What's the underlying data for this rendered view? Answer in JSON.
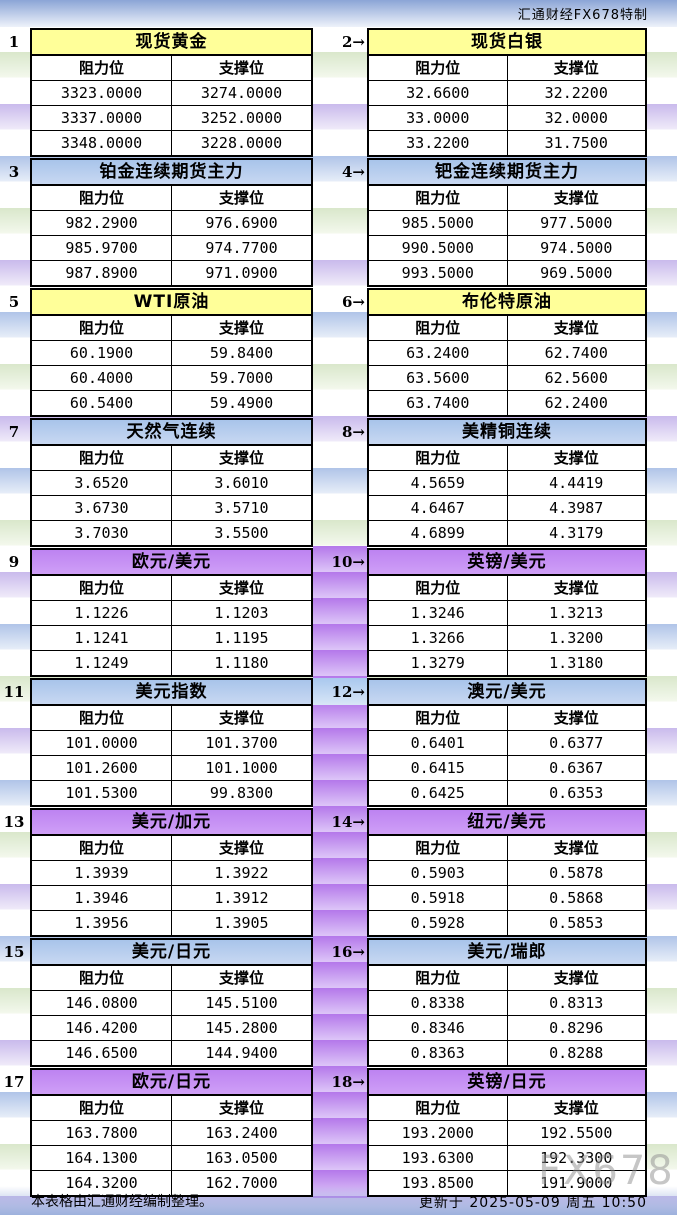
{
  "page": {
    "brand": "汇通财经FX678特制",
    "watermark": "FX678",
    "footer_note": "本表格由汇通财经编制整理。",
    "updated": "更新于 2025-05-09 周五 10:50"
  },
  "columns": {
    "resistance": "阻力位",
    "support": "支撑位"
  },
  "colors": {
    "yellow_header": "#FFFF99",
    "blue_header": "#AFC9EE",
    "purple_header": "#C48EF5",
    "strip_purple": "#B478EA",
    "strip_blue": "#A9C8EE"
  },
  "chart_data": [
    {
      "type": "table",
      "num": "1",
      "title": "现货黄金",
      "theme": "yellow",
      "columns": [
        "阻力位",
        "支撑位"
      ],
      "rows": [
        [
          "3323.0000",
          "3274.0000"
        ],
        [
          "3337.0000",
          "3252.0000"
        ],
        [
          "3348.0000",
          "3228.0000"
        ]
      ]
    },
    {
      "type": "table",
      "num": "2→",
      "title": "现货白银",
      "theme": "yellow",
      "columns": [
        "阻力位",
        "支撑位"
      ],
      "rows": [
        [
          "32.6600",
          "32.2200"
        ],
        [
          "33.0000",
          "32.0000"
        ],
        [
          "33.2200",
          "31.7500"
        ]
      ]
    },
    {
      "type": "table",
      "num": "3",
      "title": "铂金连续期货主力",
      "theme": "blue",
      "columns": [
        "阻力位",
        "支撑位"
      ],
      "rows": [
        [
          "982.2900",
          "976.6900"
        ],
        [
          "985.9700",
          "974.7700"
        ],
        [
          "987.8900",
          "971.0900"
        ]
      ]
    },
    {
      "type": "table",
      "num": "4→",
      "title": "钯金连续期货主力",
      "theme": "blue",
      "columns": [
        "阻力位",
        "支撑位"
      ],
      "rows": [
        [
          "985.5000",
          "977.5000"
        ],
        [
          "990.5000",
          "974.5000"
        ],
        [
          "993.5000",
          "969.5000"
        ]
      ]
    },
    {
      "type": "table",
      "num": "5",
      "title": "WTI原油",
      "theme": "yellow",
      "columns": [
        "阻力位",
        "支撑位"
      ],
      "rows": [
        [
          "60.1900",
          "59.8400"
        ],
        [
          "60.4000",
          "59.7000"
        ],
        [
          "60.5400",
          "59.4900"
        ]
      ]
    },
    {
      "type": "table",
      "num": "6→",
      "title": "布伦特原油",
      "theme": "yellow",
      "columns": [
        "阻力位",
        "支撑位"
      ],
      "rows": [
        [
          "63.2400",
          "62.7400"
        ],
        [
          "63.5600",
          "62.5600"
        ],
        [
          "63.7400",
          "62.2400"
        ]
      ]
    },
    {
      "type": "table",
      "num": "7",
      "title": "天然气连续",
      "theme": "blue",
      "columns": [
        "阻力位",
        "支撑位"
      ],
      "rows": [
        [
          "3.6520",
          "3.6010"
        ],
        [
          "3.6730",
          "3.5710"
        ],
        [
          "3.7030",
          "3.5500"
        ]
      ]
    },
    {
      "type": "table",
      "num": "8→",
      "title": "美精铜连续",
      "theme": "blue",
      "columns": [
        "阻力位",
        "支撑位"
      ],
      "rows": [
        [
          "4.5659",
          "4.4419"
        ],
        [
          "4.6467",
          "4.3987"
        ],
        [
          "4.6899",
          "4.3179"
        ]
      ]
    },
    {
      "type": "table",
      "num": "9",
      "title": "欧元/美元",
      "theme": "purple",
      "columns": [
        "阻力位",
        "支撑位"
      ],
      "rows": [
        [
          "1.1226",
          "1.1203"
        ],
        [
          "1.1241",
          "1.1195"
        ],
        [
          "1.1249",
          "1.1180"
        ]
      ]
    },
    {
      "type": "table",
      "num": "10→",
      "title": "英镑/美元",
      "theme": "purple",
      "columns": [
        "阻力位",
        "支撑位"
      ],
      "rows": [
        [
          "1.3246",
          "1.3213"
        ],
        [
          "1.3266",
          "1.3200"
        ],
        [
          "1.3279",
          "1.3180"
        ]
      ]
    },
    {
      "type": "table",
      "num": "11",
      "title": "美元指数",
      "theme": "blue",
      "columns": [
        "阻力位",
        "支撑位"
      ],
      "rows": [
        [
          "101.0000",
          "101.3700"
        ],
        [
          "101.2600",
          "101.1000"
        ],
        [
          "101.5300",
          "99.8300"
        ]
      ]
    },
    {
      "type": "table",
      "num": "12→",
      "title": "澳元/美元",
      "theme": "blue",
      "columns": [
        "阻力位",
        "支撑位"
      ],
      "rows": [
        [
          "0.6401",
          "0.6377"
        ],
        [
          "0.6415",
          "0.6367"
        ],
        [
          "0.6425",
          "0.6353"
        ]
      ]
    },
    {
      "type": "table",
      "num": "13",
      "title": "美元/加元",
      "theme": "purple",
      "columns": [
        "阻力位",
        "支撑位"
      ],
      "rows": [
        [
          "1.3939",
          "1.3922"
        ],
        [
          "1.3946",
          "1.3912"
        ],
        [
          "1.3956",
          "1.3905"
        ]
      ]
    },
    {
      "type": "table",
      "num": "14→",
      "title": "纽元/美元",
      "theme": "purple",
      "columns": [
        "阻力位",
        "支撑位"
      ],
      "rows": [
        [
          "0.5903",
          "0.5878"
        ],
        [
          "0.5918",
          "0.5868"
        ],
        [
          "0.5928",
          "0.5853"
        ]
      ]
    },
    {
      "type": "table",
      "num": "15",
      "title": "美元/日元",
      "theme": "blue",
      "columns": [
        "阻力位",
        "支撑位"
      ],
      "rows": [
        [
          "146.0800",
          "145.5100"
        ],
        [
          "146.4200",
          "145.2800"
        ],
        [
          "146.6500",
          "144.9400"
        ]
      ]
    },
    {
      "type": "table",
      "num": "16→",
      "title": "美元/瑞郎",
      "theme": "blue",
      "columns": [
        "阻力位",
        "支撑位"
      ],
      "rows": [
        [
          "0.8338",
          "0.8313"
        ],
        [
          "0.8346",
          "0.8296"
        ],
        [
          "0.8363",
          "0.8288"
        ]
      ]
    },
    {
      "type": "table",
      "num": "17",
      "title": "欧元/日元",
      "theme": "purple",
      "columns": [
        "阻力位",
        "支撑位"
      ],
      "rows": [
        [
          "163.7800",
          "163.2400"
        ],
        [
          "164.1300",
          "163.0500"
        ],
        [
          "164.3200",
          "162.7000"
        ]
      ]
    },
    {
      "type": "table",
      "num": "18→",
      "title": "英镑/日元",
      "theme": "purple",
      "columns": [
        "阻力位",
        "支撑位"
      ],
      "rows": [
        [
          "193.2000",
          "192.5500"
        ],
        [
          "193.6300",
          "192.3300"
        ],
        [
          "193.8500",
          "191.9000"
        ]
      ]
    }
  ]
}
